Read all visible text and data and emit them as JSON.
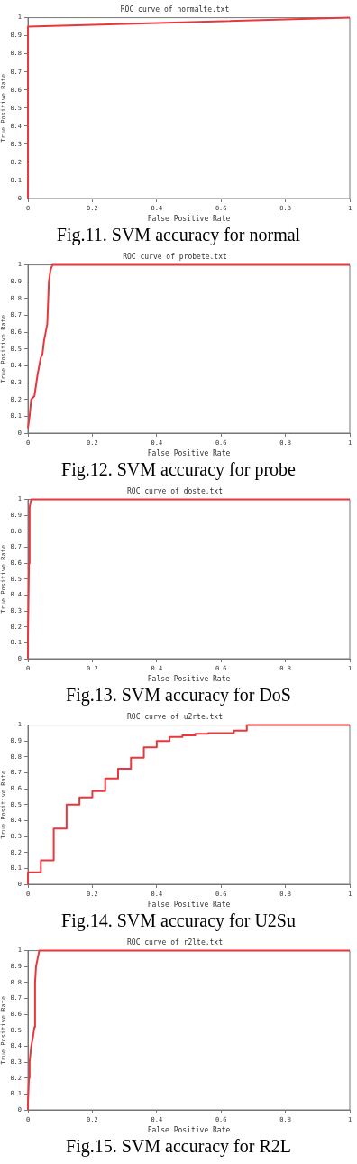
{
  "chart_data": [
    {
      "type": "line",
      "title": "ROC curve of normalte.txt",
      "xlabel": "False Positive Rate",
      "ylabel": "True Positive Rate",
      "annotations": [
        "Fig.11. SVM accuracy for normal"
      ],
      "xlim": [
        0,
        1
      ],
      "ylim": [
        0,
        1
      ],
      "xticks": [
        0,
        0.2,
        0.4,
        0.6,
        0.8,
        1
      ],
      "yticks": [
        0,
        0.1,
        0.2,
        0.3,
        0.4,
        0.5,
        0.6,
        0.7,
        0.8,
        0.9,
        1
      ],
      "grid": false,
      "legend": false,
      "marker": "none",
      "series": [
        {
          "color": "#e8383d",
          "x": [
            0,
            0,
            1
          ],
          "values": [
            0,
            0.95,
            1
          ]
        }
      ]
    },
    {
      "type": "line",
      "title": "ROC curve of probete.txt",
      "xlabel": "False Positive Rate",
      "ylabel": "True Positive Rate",
      "annotations": [
        "Fig.12. SVM accuracy for probe"
      ],
      "xlim": [
        0,
        1
      ],
      "ylim": [
        0,
        1
      ],
      "xticks": [
        0,
        0.2,
        0.4,
        0.6,
        0.8,
        1
      ],
      "yticks": [
        0,
        0.1,
        0.2,
        0.3,
        0.4,
        0.5,
        0.6,
        0.7,
        0.8,
        0.9,
        1
      ],
      "grid": false,
      "legend": false,
      "marker": "none",
      "series": [
        {
          "color": "#e8383d",
          "x": [
            0,
            0.005,
            0.01,
            0.02,
            0.03,
            0.04,
            0.045,
            0.05,
            0.055,
            0.06,
            0.065,
            0.07,
            0.076,
            1
          ],
          "values": [
            0.03,
            0.1,
            0.2,
            0.22,
            0.35,
            0.45,
            0.47,
            0.55,
            0.6,
            0.65,
            0.9,
            0.97,
            1,
            1
          ]
        }
      ]
    },
    {
      "type": "line",
      "title": "ROC curve of doste.txt",
      "xlabel": "False Positive Rate",
      "ylabel": "True Positive Rate",
      "annotations": [
        "Fig.13. SVM accuracy for DoS"
      ],
      "xlim": [
        0,
        1
      ],
      "ylim": [
        0,
        1
      ],
      "xticks": [
        0,
        0.2,
        0.4,
        0.6,
        0.8,
        1
      ],
      "yticks": [
        0,
        0.1,
        0.2,
        0.3,
        0.4,
        0.5,
        0.6,
        0.7,
        0.8,
        0.9,
        1
      ],
      "grid": false,
      "legend": false,
      "marker": "none",
      "series": [
        {
          "color": "#e8383d",
          "x": [
            0,
            0,
            0.003,
            0.005,
            0.01,
            1
          ],
          "values": [
            0,
            0.14,
            0.6,
            0.95,
            1,
            1
          ]
        }
      ]
    },
    {
      "type": "step",
      "title": "ROC curve of u2rte.txt",
      "xlabel": "False Positive Rate",
      "ylabel": "True Positive Rate",
      "annotations": [
        "Fig.14. SVM accuracy for U2Su"
      ],
      "xlim": [
        0,
        1
      ],
      "ylim": [
        0,
        1
      ],
      "xticks": [
        0,
        0.2,
        0.4,
        0.6,
        0.8,
        1
      ],
      "yticks": [
        0,
        0.1,
        0.2,
        0.3,
        0.4,
        0.5,
        0.6,
        0.7,
        0.8,
        0.9,
        1
      ],
      "grid": false,
      "legend": false,
      "marker": "none",
      "series": [
        {
          "color": "#e8383d",
          "x": [
            0,
            0,
            0.04,
            0.08,
            0.12,
            0.16,
            0.2,
            0.24,
            0.28,
            0.32,
            0.36,
            0.4,
            0.44,
            0.48,
            0.52,
            0.56,
            0.64,
            0.68,
            0.72,
            1
          ],
          "values": [
            0,
            0.065,
            0.075,
            0.15,
            0.35,
            0.5,
            0.545,
            0.585,
            0.665,
            0.725,
            0.795,
            0.86,
            0.9,
            0.925,
            0.935,
            0.945,
            0.95,
            0.965,
            1,
            1
          ]
        }
      ]
    },
    {
      "type": "line",
      "title": "ROC curve of r2lte.txt",
      "xlabel": "False Positive Rate",
      "ylabel": "True Positive Rate",
      "annotations": [
        "Fig.15. SVM accuracy for R2L"
      ],
      "xlim": [
        0,
        1
      ],
      "ylim": [
        0,
        1
      ],
      "xticks": [
        0,
        0.2,
        0.4,
        0.6,
        0.8,
        1
      ],
      "yticks": [
        0,
        0.1,
        0.2,
        0.3,
        0.4,
        0.5,
        0.6,
        0.7,
        0.8,
        0.9,
        1
      ],
      "grid": false,
      "legend": false,
      "marker": "none",
      "series": [
        {
          "color": "#e8383d",
          "x": [
            0,
            0,
            0.003,
            0.005,
            0.01,
            0.015,
            0.02,
            0.022,
            0.025,
            0.035,
            1
          ],
          "values": [
            0,
            0.05,
            0.2,
            0.3,
            0.4,
            0.45,
            0.52,
            0.8,
            0.9,
            1,
            1
          ]
        }
      ]
    }
  ]
}
